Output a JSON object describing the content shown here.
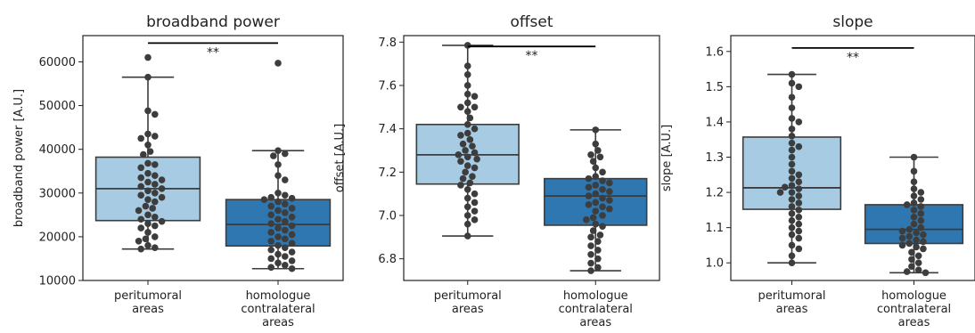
{
  "chart_data": [
    {
      "type": "box",
      "title": "broadband power",
      "ylabel": "broadband power [A.U.]",
      "ylim": [
        10000,
        66000
      ],
      "yticks": [
        10000,
        20000,
        30000,
        40000,
        50000,
        60000
      ],
      "categories": [
        {
          "lines": [
            "peritumoral",
            "areas"
          ]
        },
        {
          "lines": [
            "homologue",
            "contralateral",
            "areas"
          ]
        }
      ],
      "significance": {
        "from": 0,
        "to": 1,
        "label": "**",
        "y": 64300
      },
      "boxes": [
        {
          "q1": 23700,
          "median": 31000,
          "q3": 38200,
          "whisker_low": 17200,
          "whisker_high": 56500,
          "color": "#a6cbe3"
        },
        {
          "q1": 17900,
          "median": 22800,
          "q3": 28500,
          "whisker_low": 12700,
          "whisker_high": 39700,
          "color": "#2e77b1"
        }
      ],
      "points": [
        [
          61000,
          56500,
          48800,
          48000,
          43500,
          43000,
          42500,
          41000,
          39500,
          38800,
          36800,
          36500,
          35800,
          34500,
          34000,
          33500,
          33000,
          32500,
          32000,
          31500,
          31000,
          30500,
          30000,
          29500,
          29000,
          28500,
          28000,
          27000,
          26500,
          26000,
          25000,
          24500,
          24000,
          23500,
          23000,
          22500,
          22000,
          21000,
          20000,
          19500,
          19000,
          18000,
          17500,
          17200
        ],
        [
          59700,
          39700,
          39000,
          38500,
          36500,
          34000,
          33000,
          30000,
          29500,
          29000,
          28800,
          28500,
          28000,
          27500,
          27000,
          26500,
          26000,
          25500,
          25000,
          24500,
          24000,
          23500,
          23000,
          22500,
          22000,
          21500,
          21000,
          20500,
          20000,
          19500,
          19000,
          18500,
          18000,
          17500,
          17000,
          16500,
          16000,
          15500,
          15000,
          14500,
          14000,
          13500,
          13000,
          12700
        ]
      ]
    },
    {
      "type": "box",
      "title": "offset",
      "ylabel": "offset [A.U.]",
      "ylim": [
        6.7,
        7.83
      ],
      "yticks": [
        6.8,
        7.0,
        7.2,
        7.4,
        7.6,
        7.8
      ],
      "categories": [
        {
          "lines": [
            "peritumoral",
            "areas"
          ]
        },
        {
          "lines": [
            "homologue",
            "contralateral",
            "areas"
          ]
        }
      ],
      "significance": {
        "from": 0,
        "to": 1,
        "label": "**",
        "y": 7.78
      },
      "boxes": [
        {
          "q1": 7.145,
          "median": 7.28,
          "q3": 7.42,
          "whisker_low": 6.905,
          "whisker_high": 7.785,
          "color": "#a6cbe3"
        },
        {
          "q1": 6.955,
          "median": 7.09,
          "q3": 7.17,
          "whisker_low": 6.745,
          "whisker_high": 7.395,
          "color": "#2e77b1"
        }
      ],
      "points": [
        [
          7.785,
          7.69,
          7.65,
          7.6,
          7.56,
          7.55,
          7.52,
          7.5,
          7.5,
          7.48,
          7.45,
          7.42,
          7.4,
          7.38,
          7.37,
          7.35,
          7.33,
          7.32,
          7.3,
          7.29,
          7.28,
          7.27,
          7.26,
          7.25,
          7.23,
          7.22,
          7.2,
          7.18,
          7.17,
          7.15,
          7.14,
          7.12,
          7.1,
          7.08,
          7.06,
          7.04,
          7.02,
          7.0,
          6.98,
          6.96,
          6.905
        ],
        [
          7.395,
          7.33,
          7.3,
          7.28,
          7.27,
          7.25,
          7.22,
          7.2,
          7.18,
          7.17,
          7.16,
          7.15,
          7.14,
          7.13,
          7.12,
          7.11,
          7.1,
          7.09,
          7.08,
          7.07,
          7.06,
          7.05,
          7.04,
          7.03,
          7.02,
          7.0,
          6.99,
          6.98,
          6.96,
          6.95,
          6.93,
          6.91,
          6.9,
          6.88,
          6.86,
          6.84,
          6.82,
          6.8,
          6.78,
          6.76,
          6.745
        ]
      ]
    },
    {
      "type": "box",
      "title": "slope",
      "ylabel": "slope [A.U.]",
      "ylim": [
        0.95,
        1.645
      ],
      "yticks": [
        1.0,
        1.1,
        1.2,
        1.3,
        1.4,
        1.5,
        1.6
      ],
      "categories": [
        {
          "lines": [
            "peritumoral",
            "areas"
          ]
        },
        {
          "lines": [
            "homologue",
            "contralateral",
            "areas"
          ]
        }
      ],
      "significance": {
        "from": 0,
        "to": 1,
        "label": "**",
        "y": 1.61
      },
      "boxes": [
        {
          "q1": 1.152,
          "median": 1.213,
          "q3": 1.357,
          "whisker_low": 1.0,
          "whisker_high": 1.535,
          "color": "#a6cbe3"
        },
        {
          "q1": 1.055,
          "median": 1.095,
          "q3": 1.165,
          "whisker_low": 0.972,
          "whisker_high": 1.3,
          "color": "#2e77b1"
        }
      ],
      "points": [
        [
          1.535,
          1.51,
          1.5,
          1.47,
          1.44,
          1.41,
          1.4,
          1.38,
          1.36,
          1.34,
          1.33,
          1.32,
          1.3,
          1.28,
          1.26,
          1.25,
          1.24,
          1.23,
          1.22,
          1.215,
          1.21,
          1.2,
          1.2,
          1.19,
          1.18,
          1.17,
          1.16,
          1.15,
          1.14,
          1.13,
          1.12,
          1.11,
          1.1,
          1.09,
          1.08,
          1.07,
          1.05,
          1.04,
          1.02,
          1.0
        ],
        [
          1.3,
          1.26,
          1.23,
          1.21,
          1.2,
          1.19,
          1.18,
          1.17,
          1.165,
          1.16,
          1.15,
          1.14,
          1.13,
          1.12,
          1.11,
          1.1,
          1.095,
          1.09,
          1.085,
          1.08,
          1.075,
          1.07,
          1.065,
          1.06,
          1.055,
          1.05,
          1.045,
          1.04,
          1.03,
          1.02,
          1.01,
          1.0,
          0.99,
          0.98,
          0.975,
          0.972
        ]
      ]
    }
  ]
}
